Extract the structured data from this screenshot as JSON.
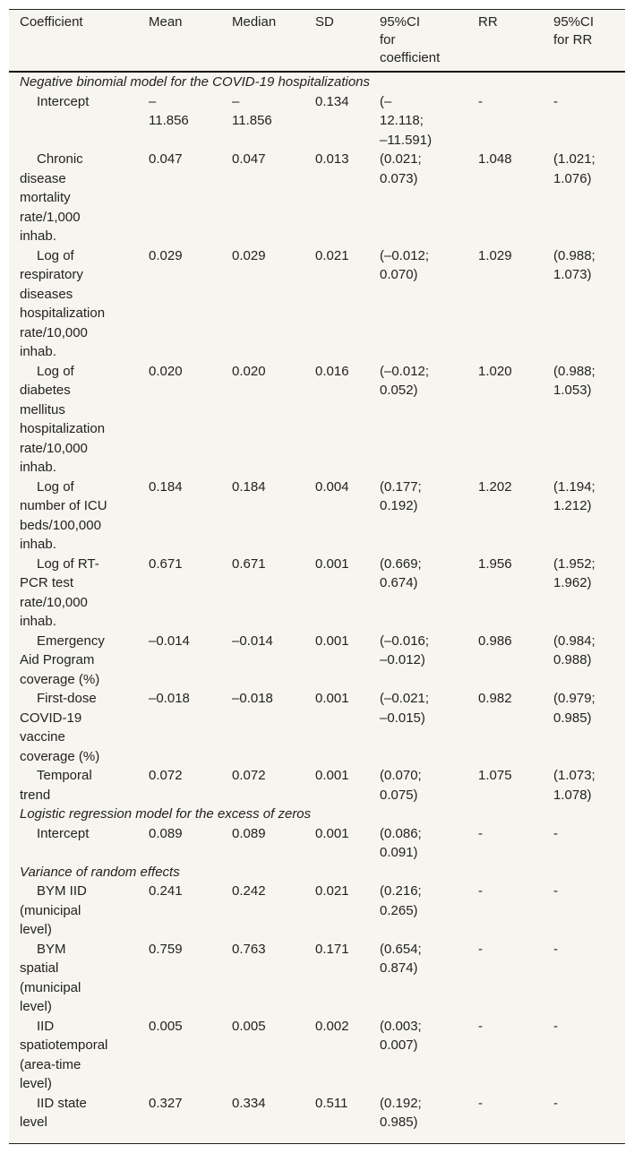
{
  "headers": [
    "Coefficient",
    "Mean",
    "Median",
    "SD",
    "95%CI for coefficient",
    "RR",
    "95%CI for RR"
  ],
  "rows": [
    {
      "section": "Negative binomial model for the COVID-19 hospitalizations"
    },
    {
      "cells": [
        "Intercept",
        "–11.856",
        "–11.856",
        "0.134",
        "(–12.118; –11.591)",
        "-",
        "-"
      ]
    },
    {
      "cells": [
        "Chronic disease mortality rate/1,000 inhab.",
        "0.047",
        "0.047",
        "0.013",
        "(0.021; 0.073)",
        "1.048",
        "(1.021; 1.076)"
      ]
    },
    {
      "cells": [
        "Log of respiratory diseases hospitalization rate/10,000 inhab.",
        "0.029",
        "0.029",
        "0.021",
        "(–0.012; 0.070)",
        "1.029",
        "(0.988; 1.073)"
      ]
    },
    {
      "cells": [
        "Log of diabetes mellitus hospitalization rate/10,000 inhab.",
        "0.020",
        "0.020",
        "0.016",
        "(–0.012; 0.052)",
        "1.020",
        "(0.988; 1.053)"
      ]
    },
    {
      "cells": [
        "Log of number of ICU beds/100,000 inhab.",
        "0.184",
        "0.184",
        "0.004",
        "(0.177; 0.192)",
        "1.202",
        "(1.194; 1.212)"
      ]
    },
    {
      "cells": [
        "Log of RT-PCR test rate/10,000 inhab.",
        "0.671",
        "0.671",
        "0.001",
        "(0.669; 0.674)",
        "1.956",
        "(1.952; 1.962)"
      ]
    },
    {
      "cells": [
        "Emergency Aid Program coverage (%)",
        "–0.014",
        "–0.014",
        "0.001",
        "(–0.016; –0.012)",
        "0.986",
        "(0.984; 0.988)"
      ]
    },
    {
      "cells": [
        "First-dose COVID-19 vaccine coverage (%)",
        "–0.018",
        "–0.018",
        "0.001",
        "(–0.021; –0.015)",
        "0.982",
        "(0.979; 0.985)"
      ]
    },
    {
      "cells": [
        "Temporal trend",
        "0.072",
        "0.072",
        "0.001",
        "(0.070; 0.075)",
        "1.075",
        "(1.073; 1.078)"
      ]
    },
    {
      "section": "Logistic regression model for the excess of zeros"
    },
    {
      "cells": [
        "Intercept",
        "0.089",
        "0.089",
        "0.001",
        "(0.086; 0.091)",
        "-",
        "-"
      ]
    },
    {
      "section": "Variance of random effects"
    },
    {
      "cells": [
        "BYM IID (municipal level)",
        "0.241",
        "0.242",
        "0.021",
        "(0.216; 0.265)",
        "-",
        "-"
      ]
    },
    {
      "cells": [
        "BYM spatial (municipal level)",
        "0.759",
        "0.763",
        "0.171",
        "(0.654; 0.874)",
        "-",
        "-"
      ]
    },
    {
      "cells": [
        "IID spatiotemporal (area-time level)",
        "0.005",
        "0.005",
        "0.002",
        "(0.003; 0.007)",
        "-",
        "-"
      ]
    },
    {
      "cells": [
        "IID state level",
        "0.327",
        "0.334",
        "0.511",
        "(0.192; 0.985)",
        "-",
        "-"
      ]
    }
  ]
}
